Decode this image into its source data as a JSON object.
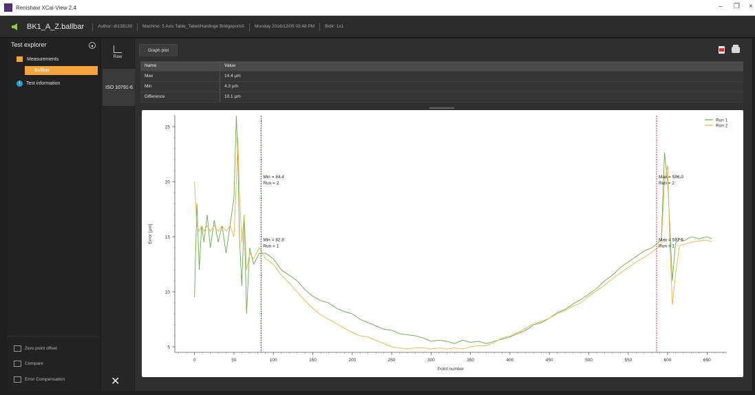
{
  "window": {
    "title": "Renishaw XCal-View 2.4",
    "minimize_glyph": "–",
    "restore_glyph": "❐",
    "close_glyph": "×"
  },
  "header": {
    "file_title": "BK1_A_Z.ballbar",
    "author": "Author: dt138139",
    "machine": "Machine: 5 Axis Table_Tabel/Hardinge Bridgeport/A",
    "date": "Monday 2016/12/05 02:48 PM",
    "mode": "Bidir: 1x1"
  },
  "explorer": {
    "title": "Test explorer",
    "measurements_label": "Measurements",
    "ballbar_label": "Ballbar",
    "test_info_label": "Test information",
    "info_glyph": "i",
    "bottom_items": [
      {
        "label": "Zero point offset",
        "icon": "zero-offset-icon"
      },
      {
        "label": "Compare",
        "icon": "compare-icon"
      },
      {
        "label": "Error Compensation",
        "icon": "error-compensation-icon"
      }
    ]
  },
  "views": {
    "raw_label": "Raw",
    "iso_label": "ISO 10791-6",
    "tools_glyph": "✕"
  },
  "tabs": {
    "graph_plot": "Graph plot"
  },
  "summary_table": {
    "headers": [
      "Name",
      "Value"
    ],
    "rows": [
      {
        "name": "Max",
        "value": "14.4 µm"
      },
      {
        "name": "Min",
        "value": "4.3 µm"
      },
      {
        "name": "Difference",
        "value": "10.1 µm"
      }
    ]
  },
  "chart_data": {
    "type": "line",
    "title": "",
    "xlabel": "Point number",
    "ylabel": "Error [µm]",
    "xlim": [
      -25,
      675
    ],
    "ylim": [
      4.5,
      26
    ],
    "xticks": [
      0,
      50,
      100,
      150,
      200,
      250,
      300,
      350,
      400,
      450,
      500,
      550,
      600,
      650
    ],
    "yticks": [
      5,
      10,
      15,
      20,
      25
    ],
    "legend_position": "top-right",
    "series": [
      {
        "name": "Run 1",
        "color": "#6aa84f",
        "x": [
          0,
          3,
          6,
          9,
          12,
          16,
          20,
          25,
          30,
          35,
          40,
          45,
          50,
          53,
          55,
          57,
          60,
          63,
          66,
          70,
          75,
          82,
          90,
          100,
          110,
          120,
          130,
          140,
          150,
          160,
          170,
          180,
          190,
          200,
          210,
          220,
          230,
          240,
          250,
          260,
          270,
          280,
          290,
          300,
          310,
          320,
          330,
          340,
          350,
          360,
          370,
          380,
          390,
          400,
          410,
          420,
          430,
          440,
          450,
          460,
          470,
          480,
          490,
          500,
          510,
          520,
          530,
          540,
          550,
          560,
          570,
          580,
          587,
          592,
          596,
          600,
          603,
          606,
          610,
          615,
          620,
          630,
          640,
          650,
          656
        ],
        "y": [
          9.5,
          18,
          12,
          16,
          14.5,
          17,
          14,
          16.5,
          14.5,
          16,
          13.5,
          16,
          18.5,
          26,
          22,
          15,
          10.5,
          17,
          8,
          14,
          12.5,
          13.5,
          13.5,
          13,
          12,
          11.5,
          11,
          10.2,
          9.6,
          9.2,
          9,
          8.5,
          8.2,
          8,
          7.5,
          7.2,
          6.9,
          6.6,
          6.5,
          6.2,
          6.1,
          6,
          5.8,
          5.5,
          5.6,
          5.5,
          5.3,
          5.6,
          5.4,
          5.5,
          5.3,
          5.5,
          5.7,
          5.9,
          6.2,
          6.5,
          7,
          7.2,
          7.6,
          8.1,
          8.4,
          8.9,
          9.3,
          9.8,
          10.3,
          11,
          11.5,
          12.2,
          12.7,
          13.2,
          13.7,
          14,
          14.4,
          14.7,
          22.6,
          20,
          15.6,
          11,
          14.4,
          14.8,
          14.6,
          15,
          14.8,
          15,
          14.8
        ]
      },
      {
        "name": "Run 2",
        "color": "#e6b54a",
        "x": [
          0,
          3,
          6,
          9,
          12,
          16,
          20,
          25,
          30,
          35,
          40,
          45,
          50,
          53,
          55,
          57,
          60,
          63,
          66,
          70,
          75,
          82,
          90,
          100,
          110,
          120,
          130,
          140,
          150,
          160,
          170,
          180,
          190,
          200,
          210,
          220,
          230,
          240,
          250,
          260,
          270,
          280,
          290,
          300,
          310,
          320,
          330,
          340,
          350,
          360,
          370,
          380,
          390,
          400,
          410,
          420,
          430,
          440,
          450,
          460,
          470,
          480,
          490,
          500,
          510,
          520,
          530,
          540,
          550,
          560,
          570,
          580,
          587,
          592,
          596,
          600,
          603,
          606,
          610,
          615,
          620,
          630,
          640,
          650,
          656
        ],
        "y": [
          20,
          16,
          15.5,
          16,
          15.5,
          16,
          15.5,
          16,
          15.5,
          16,
          15.5,
          16,
          15,
          20,
          24,
          19,
          14.5,
          17,
          12,
          13.5,
          13,
          14,
          13,
          12.5,
          11.5,
          10.8,
          10,
          9.2,
          8.5,
          7.9,
          7.5,
          7.1,
          6.7,
          6.3,
          6,
          5.9,
          5.6,
          5.3,
          5,
          4.9,
          4.8,
          4.9,
          4.9,
          4.8,
          4.9,
          4.8,
          4.9,
          4.8,
          5,
          5.1,
          5.1,
          5.4,
          5.8,
          6,
          6.3,
          6.7,
          7.1,
          7.3,
          7.6,
          8,
          8.3,
          8.7,
          9,
          9.6,
          10.1,
          10.6,
          11.2,
          11.7,
          12.2,
          12.7,
          13.1,
          13.6,
          14,
          14.3,
          20,
          21.5,
          14,
          8.8,
          11.5,
          14.2,
          14.3,
          14.5,
          14.6,
          14.7,
          14.5
        ]
      }
    ],
    "markers": [
      {
        "x": 84.4,
        "color": "#3b4fe0",
        "label_top": "Min = 84.4",
        "label_top_run": "Run = 2",
        "label_top_y": 20.3,
        "label_bottom": "Min = 82.8",
        "label_bottom_run": "Run = 1",
        "label_bottom_y": 14.6
      },
      {
        "x": 586.0,
        "color": "#e05050",
        "label_top": "Max = 586.0",
        "label_top_run": "Run = 2",
        "label_top_y": 20.3,
        "label_bottom": "Max = 587.6",
        "label_bottom_run": "Run = 1",
        "label_bottom_y": 14.6
      }
    ]
  }
}
